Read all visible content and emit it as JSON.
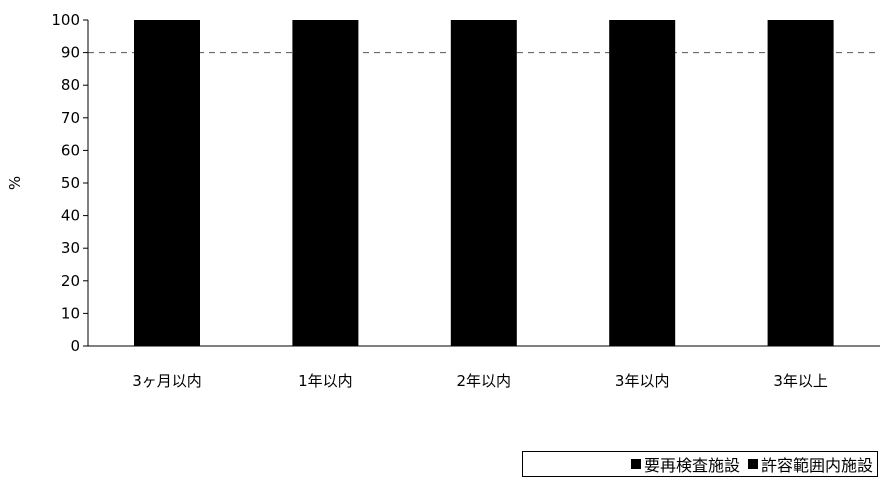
{
  "colors": {
    "series_0": "#000000",
    "series_1": "#ffffff",
    "axis": "#000000",
    "reference_line": "#555555"
  },
  "chart_data": {
    "type": "bar",
    "stacked": true,
    "ylabel": "%",
    "xlabel": "",
    "ylim": [
      0,
      100
    ],
    "yticks": [
      0,
      10,
      20,
      30,
      40,
      50,
      60,
      70,
      80,
      90,
      100
    ],
    "reference_line": 90,
    "legend_position": "bottom-right",
    "grid": false,
    "categories": [
      "3ヶ月以内",
      "1年以内",
      "2年以内",
      "3年以内",
      "3年以上"
    ],
    "series": [
      {
        "name": "要再検査施設",
        "values": [
          100,
          100,
          100,
          100,
          100
        ]
      },
      {
        "name": "許容範囲内施設",
        "values": [
          0,
          0,
          0,
          0,
          0
        ]
      }
    ]
  }
}
